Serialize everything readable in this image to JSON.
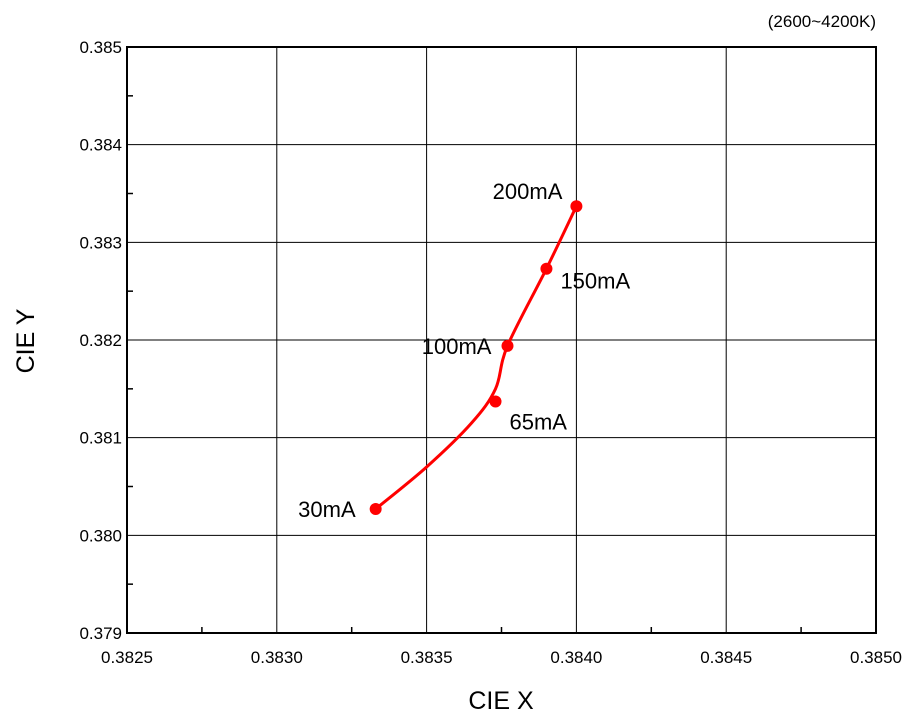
{
  "chart_data": {
    "type": "line",
    "annotation": "(2600~4200K)",
    "xlabel": "CIE X",
    "ylabel": "CIE Y",
    "xlim": [
      0.3825,
      0.385
    ],
    "ylim": [
      0.379,
      0.385
    ],
    "x_ticks": [
      "0.3825",
      "0.3830",
      "0.3835",
      "0.3840",
      "0.3845",
      "0.3850"
    ],
    "y_ticks": [
      "0.379",
      "0.380",
      "0.381",
      "0.382",
      "0.383",
      "0.384",
      "0.385"
    ],
    "grid": true,
    "series": [
      {
        "color": "#ff0000",
        "points": [
          {
            "label": "30mA",
            "x": 0.38333,
            "y": 0.38027
          },
          {
            "label": "65mA",
            "x": 0.38373,
            "y": 0.38137
          },
          {
            "label": "100mA",
            "x": 0.38377,
            "y": 0.38194
          },
          {
            "label": "150mA",
            "x": 0.3839,
            "y": 0.38273
          },
          {
            "label": "200mA",
            "x": 0.384,
            "y": 0.38337
          }
        ],
        "curve": [
          {
            "x": 0.38333,
            "y": 0.38027
          },
          {
            "x": 0.3835,
            "y": 0.3807
          },
          {
            "x": 0.38365,
            "y": 0.38115
          },
          {
            "x": 0.38373,
            "y": 0.3815
          },
          {
            "x": 0.38377,
            "y": 0.38194
          },
          {
            "x": 0.3839,
            "y": 0.38273
          },
          {
            "x": 0.384,
            "y": 0.38337
          }
        ]
      }
    ]
  }
}
